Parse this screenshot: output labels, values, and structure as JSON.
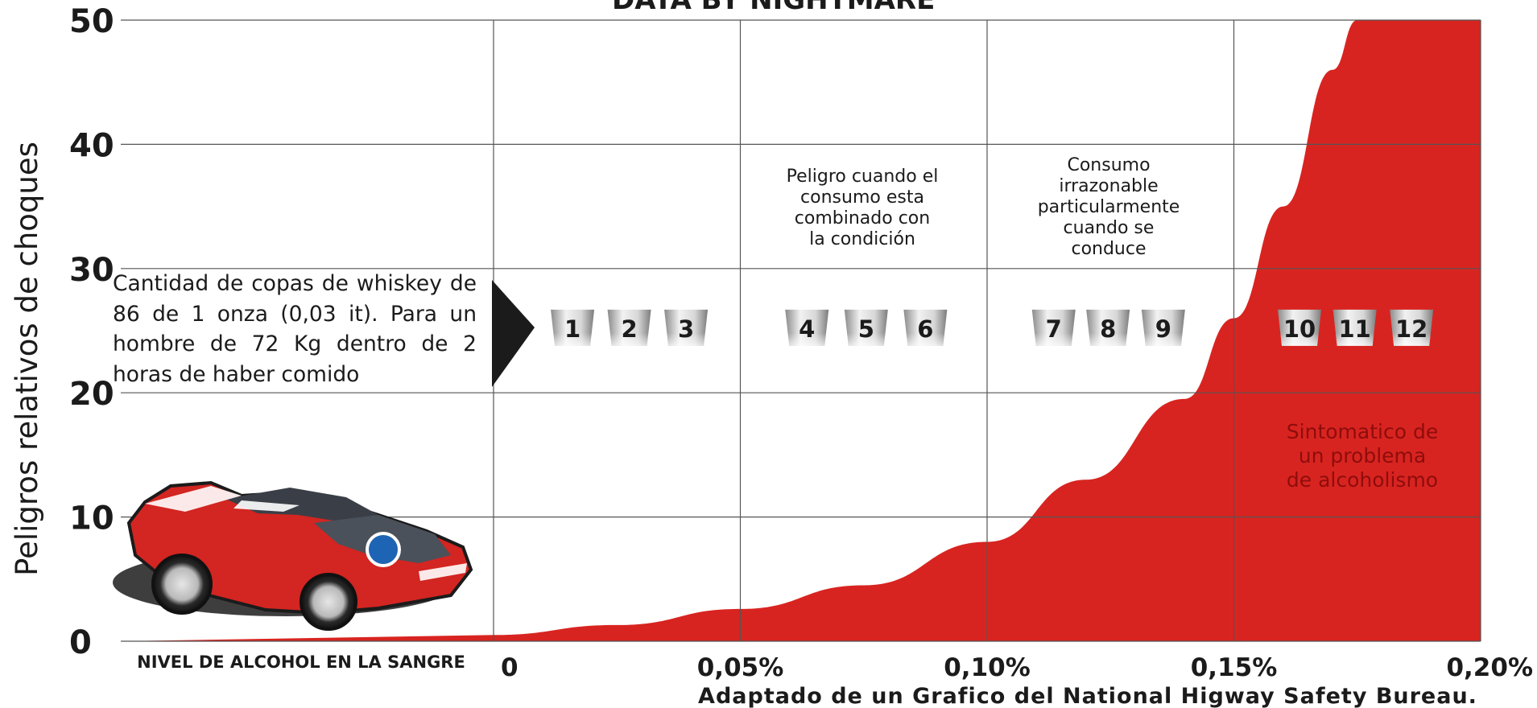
{
  "chart_data": {
    "type": "area",
    "title": "",
    "xlabel": "NIVEL DE ALCOHOL EN LA SANGRE",
    "ylabel": "Peligros relativos de choques",
    "x_tick_labels": [
      "0",
      "0,05%",
      "0,10%",
      "0,15%",
      "0,20%"
    ],
    "y_tick_labels": [
      "0",
      "10",
      "20",
      "30",
      "40",
      "50"
    ],
    "xlim": [
      0,
      0.2
    ],
    "ylim": [
      0,
      50
    ],
    "grid": true,
    "fill_color": "#d82420",
    "series": [
      {
        "x": [
          0,
          0.025,
          0.05,
          0.075,
          0.1,
          0.12,
          0.14,
          0.15,
          0.16,
          0.17,
          0.175,
          0.2
        ],
        "values": [
          0.5,
          1.3,
          2.6,
          4.5,
          8,
          13,
          19.5,
          26,
          35,
          46,
          50,
          50
        ]
      }
    ],
    "glasses": [
      {
        "number": "1",
        "x": 0.016
      },
      {
        "number": "2",
        "x": 0.0275
      },
      {
        "number": "3",
        "x": 0.039
      },
      {
        "number": "4",
        "x": 0.0635
      },
      {
        "number": "5",
        "x": 0.0755
      },
      {
        "number": "6",
        "x": 0.0875
      },
      {
        "number": "7",
        "x": 0.1135
      },
      {
        "number": "8",
        "x": 0.1245
      },
      {
        "number": "9",
        "x": 0.1357
      },
      {
        "number": "10",
        "x": 0.1633
      },
      {
        "number": "11",
        "x": 0.1745
      },
      {
        "number": "12",
        "x": 0.186
      }
    ],
    "glass_level_y": 25.2,
    "annotations": {
      "peligro": [
        "Peligro cuando el",
        "consumo esta",
        "combinado con",
        "la condición"
      ],
      "irrazonable": [
        "Consumo",
        "irrazonable",
        "particularmente",
        "cuando se",
        "conduce"
      ],
      "sintomatico": [
        "Sintomatico de",
        "un problema",
        "de alcoholismo"
      ]
    },
    "source": "Adaptado de un Grafico del National Higway Safety Bureau.",
    "note": "Cantidad de copas de whiskey de 86 de 1 onza (0,03 it). Para un hombre de 72 Kg dentro de 2 horas de haber comido",
    "truncated_title": "DATA BY NIGHTMARE"
  },
  "car_image": "red-sports-car"
}
